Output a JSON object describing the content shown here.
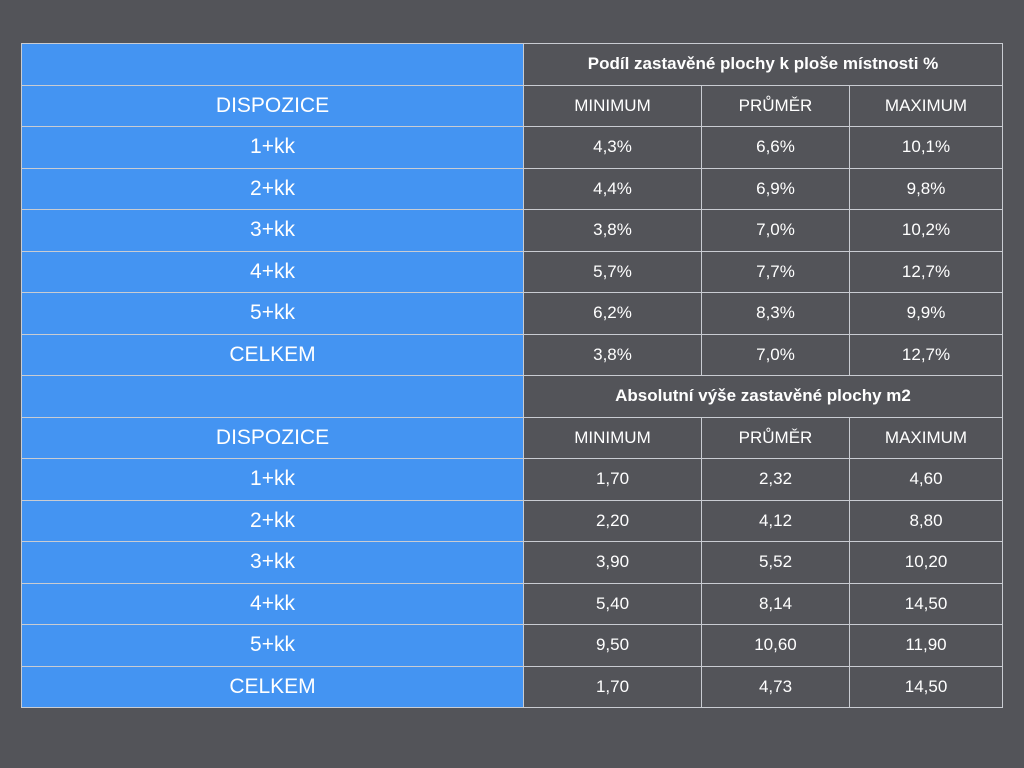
{
  "sections": [
    {
      "title": "Podíl zastavěné plochy k ploše místnosti %",
      "header": {
        "label": "DISPOZICE",
        "columns": [
          "MINIMUM",
          "PRŮMĚR",
          "MAXIMUM"
        ]
      },
      "rows": [
        {
          "label": "1+kk",
          "values": [
            "4,3%",
            "6,6%",
            "10,1%"
          ]
        },
        {
          "label": "2+kk",
          "values": [
            "4,4%",
            "6,9%",
            "9,8%"
          ]
        },
        {
          "label": "3+kk",
          "values": [
            "3,8%",
            "7,0%",
            "10,2%"
          ]
        },
        {
          "label": "4+kk",
          "values": [
            "5,7%",
            "7,7%",
            "12,7%"
          ]
        },
        {
          "label": "5+kk",
          "values": [
            "6,2%",
            "8,3%",
            "9,9%"
          ]
        },
        {
          "label": "CELKEM",
          "values": [
            "3,8%",
            "7,0%",
            "12,7%"
          ]
        }
      ]
    },
    {
      "title": "Absolutní výše zastavěné plochy m2",
      "header": {
        "label": "DISPOZICE",
        "columns": [
          "MINIMUM",
          "PRŮMĚR",
          "MAXIMUM"
        ]
      },
      "rows": [
        {
          "label": "1+kk",
          "values": [
            "1,70",
            "2,32",
            "4,60"
          ]
        },
        {
          "label": "2+kk",
          "values": [
            "2,20",
            "4,12",
            "8,80"
          ]
        },
        {
          "label": "3+kk",
          "values": [
            "3,90",
            "5,52",
            "10,20"
          ]
        },
        {
          "label": "4+kk",
          "values": [
            "5,40",
            "8,14",
            "14,50"
          ]
        },
        {
          "label": "5+kk",
          "values": [
            "9,50",
            "10,60",
            "11,90"
          ]
        },
        {
          "label": "CELKEM",
          "values": [
            "1,70",
            "4,73",
            "14,50"
          ]
        }
      ]
    }
  ],
  "colors": {
    "label_column": "#4494f2",
    "background": "#535459",
    "grid_line": "#c9ccd2",
    "text": "#ffffff"
  }
}
